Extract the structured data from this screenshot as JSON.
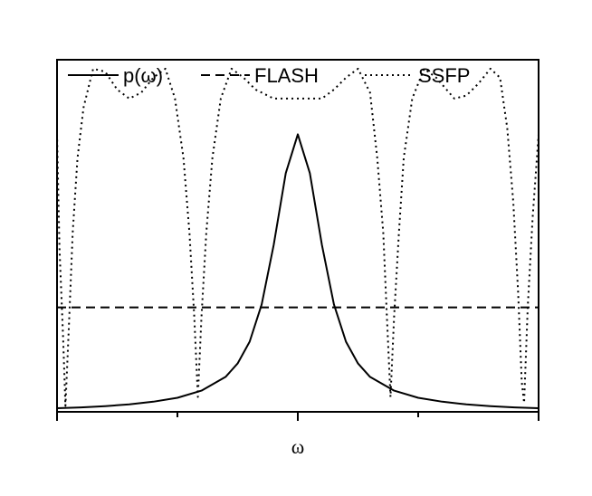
{
  "chart_data": {
    "type": "line",
    "title": "",
    "xlabel": "ω",
    "ylabel": "",
    "x_range": [
      -2,
      2
    ],
    "y_range": [
      0,
      1.18
    ],
    "grid": false,
    "legend_position": "top",
    "series": [
      {
        "name": "p(ω)",
        "style": "solid",
        "points": [
          [
            -2,
            0.012
          ],
          [
            -1.8,
            0.015
          ],
          [
            -1.6,
            0.019
          ],
          [
            -1.4,
            0.025
          ],
          [
            -1.2,
            0.034
          ],
          [
            -1.0,
            0.047
          ],
          [
            -0.8,
            0.071
          ],
          [
            -0.6,
            0.117
          ],
          [
            -0.5,
            0.162
          ],
          [
            -0.4,
            0.235
          ],
          [
            -0.3,
            0.36
          ],
          [
            -0.2,
            0.56
          ],
          [
            -0.1,
            0.8
          ],
          [
            0,
            0.93
          ],
          [
            0.1,
            0.8
          ],
          [
            0.2,
            0.56
          ],
          [
            0.3,
            0.36
          ],
          [
            0.4,
            0.235
          ],
          [
            0.5,
            0.162
          ],
          [
            0.6,
            0.117
          ],
          [
            0.8,
            0.071
          ],
          [
            1.0,
            0.047
          ],
          [
            1.2,
            0.034
          ],
          [
            1.4,
            0.025
          ],
          [
            1.6,
            0.019
          ],
          [
            1.8,
            0.015
          ],
          [
            2,
            0.012
          ]
        ]
      },
      {
        "name": "FLASH",
        "style": "dashed",
        "points": [
          [
            -2,
            0.35
          ],
          [
            2,
            0.35
          ]
        ]
      },
      {
        "name": "SSFP",
        "style": "dotted",
        "points": [
          [
            -2,
            0.93
          ],
          [
            -1.98,
            0.55
          ],
          [
            -1.95,
            0.25
          ],
          [
            -1.93,
            0.02
          ],
          [
            -1.9,
            0.3
          ],
          [
            -1.87,
            0.6
          ],
          [
            -1.83,
            0.85
          ],
          [
            -1.78,
            1.02
          ],
          [
            -1.7,
            1.15
          ],
          [
            -1.6,
            1.14
          ],
          [
            -1.5,
            1.08
          ],
          [
            -1.4,
            1.05
          ],
          [
            -1.3,
            1.07
          ],
          [
            -1.2,
            1.12
          ],
          [
            -1.1,
            1.15
          ],
          [
            -1.02,
            1.05
          ],
          [
            -0.95,
            0.85
          ],
          [
            -0.9,
            0.6
          ],
          [
            -0.86,
            0.32
          ],
          [
            -0.83,
            0.05
          ],
          [
            -0.8,
            0.32
          ],
          [
            -0.76,
            0.6
          ],
          [
            -0.71,
            0.85
          ],
          [
            -0.64,
            1.05
          ],
          [
            -0.55,
            1.15
          ],
          [
            -0.45,
            1.12
          ],
          [
            -0.35,
            1.08
          ],
          [
            -0.2,
            1.05
          ],
          [
            0,
            1.05
          ],
          [
            0.2,
            1.05
          ],
          [
            0.3,
            1.08
          ],
          [
            0.4,
            1.12
          ],
          [
            0.5,
            1.15
          ],
          [
            0.6,
            1.07
          ],
          [
            0.66,
            0.85
          ],
          [
            0.71,
            0.6
          ],
          [
            0.74,
            0.32
          ],
          [
            0.77,
            0.05
          ],
          [
            0.8,
            0.32
          ],
          [
            0.84,
            0.6
          ],
          [
            0.88,
            0.85
          ],
          [
            0.95,
            1.05
          ],
          [
            1.05,
            1.15
          ],
          [
            1.15,
            1.12
          ],
          [
            1.3,
            1.05
          ],
          [
            1.4,
            1.06
          ],
          [
            1.5,
            1.1
          ],
          [
            1.6,
            1.15
          ],
          [
            1.68,
            1.12
          ],
          [
            1.74,
            0.95
          ],
          [
            1.79,
            0.7
          ],
          [
            1.83,
            0.4
          ],
          [
            1.86,
            0.1
          ],
          [
            1.88,
            0.03
          ],
          [
            1.91,
            0.35
          ],
          [
            1.95,
            0.65
          ],
          [
            2,
            0.93
          ]
        ]
      }
    ]
  }
}
